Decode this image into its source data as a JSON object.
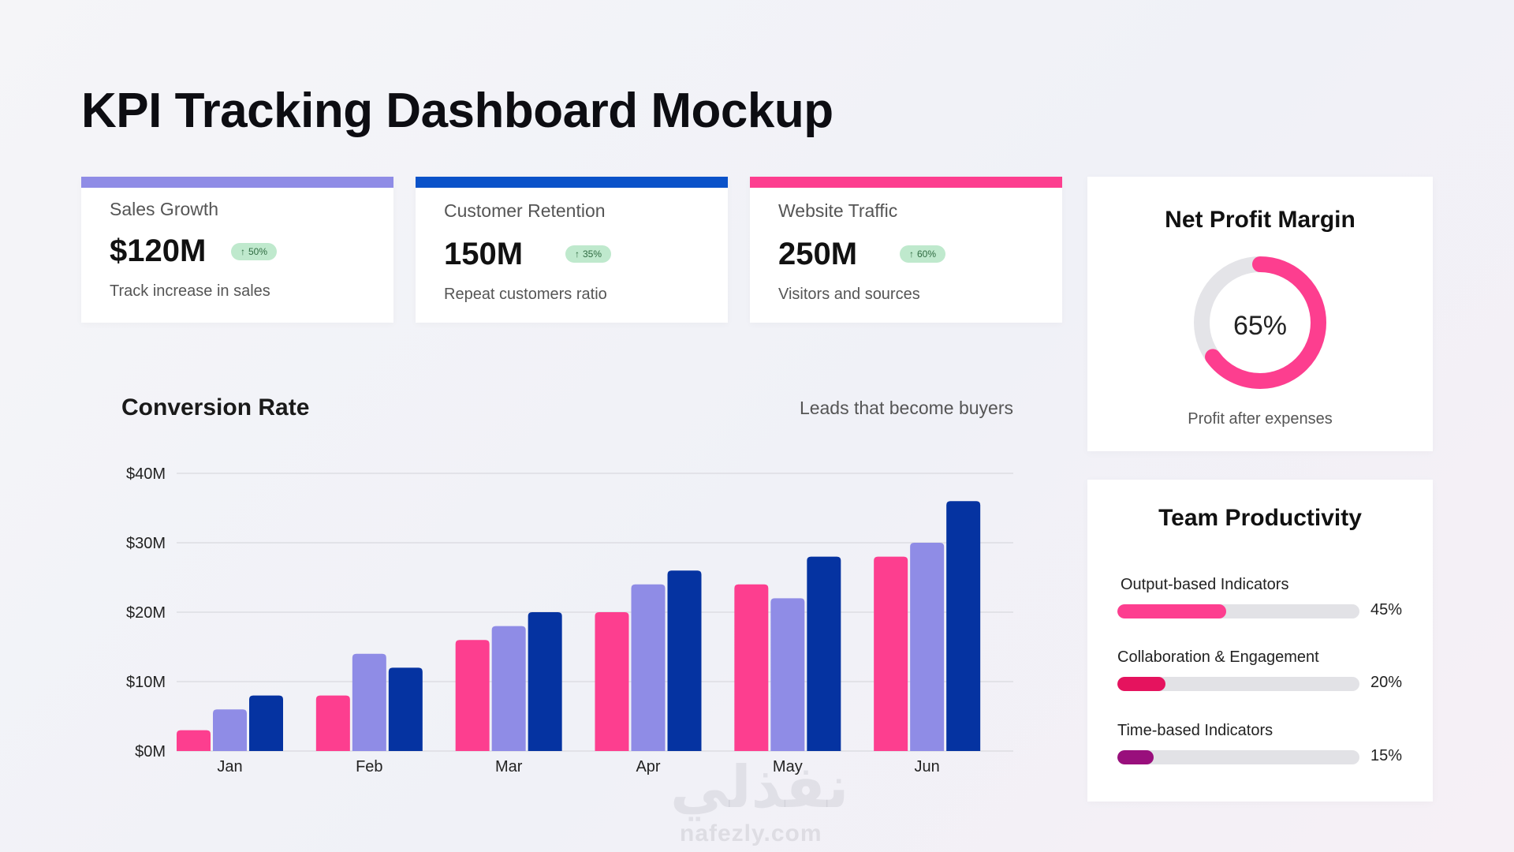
{
  "page": {
    "title": "KPI Tracking Dashboard Mockup"
  },
  "kpis": [
    {
      "label": "Sales Growth",
      "value": "$120M",
      "badge": "50%",
      "desc": "Track increase in sales",
      "color": "#8f8ce6"
    },
    {
      "label": "Customer Retention",
      "value": "150M",
      "badge": "35%",
      "desc": "Repeat customers ratio",
      "color": "#0a52c9"
    },
    {
      "label": "Website Traffic",
      "value": "250M",
      "badge": "60%",
      "desc": "Visitors and sources",
      "color": "#fd3e8f"
    }
  ],
  "conversion": {
    "title": "Conversion Rate",
    "subtitle": "Leads that become buyers"
  },
  "chart_data": {
    "type": "bar",
    "categories": [
      "Jan",
      "Feb",
      "Mar",
      "Apr",
      "May",
      "Jun"
    ],
    "series": [
      {
        "values": [
          3,
          8,
          16,
          20,
          24,
          28
        ],
        "color": "#fd3e8f"
      },
      {
        "values": [
          6,
          14,
          18,
          24,
          22,
          30
        ],
        "color": "#8f8ce6"
      },
      {
        "values": [
          8,
          12,
          20,
          26,
          28,
          36
        ],
        "color": "#0533a1"
      }
    ],
    "yticks": [
      "$0M",
      "$10M",
      "$20M",
      "$30M",
      "$40M"
    ],
    "ylim": [
      0,
      40
    ],
    "grid": true
  },
  "net_profit": {
    "title": "Net Profit Margin",
    "value": 65,
    "value_label": "65%",
    "subtitle": "Profit after expenses",
    "color": "#fd3e8f",
    "track_color": "#e4e4e8"
  },
  "team_productivity": {
    "title": "Team Productivity",
    "items": [
      {
        "label": "Output-based Indicators",
        "pct_label": "45%",
        "value": 45,
        "color": "#fd3e8f"
      },
      {
        "label": "Collaboration & Engagement",
        "pct_label": "20%",
        "value": 20,
        "color": "#e5135e"
      },
      {
        "label": "Time-based Indicators",
        "pct_label": "15%",
        "value": 15,
        "color": "#990f7c"
      }
    ]
  },
  "watermark": {
    "arabic": "نفذلي",
    "latin": "nafezly.com"
  }
}
